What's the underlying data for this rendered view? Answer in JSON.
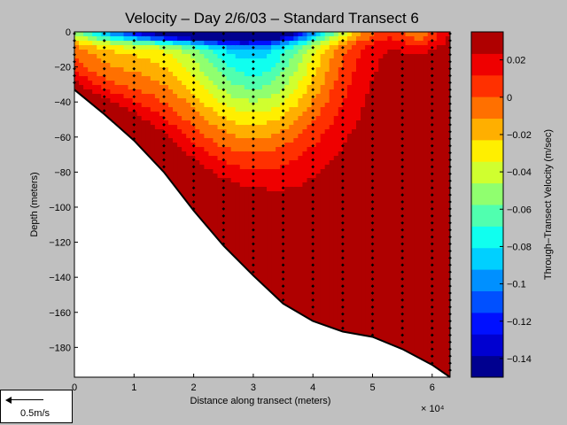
{
  "chart_data": {
    "type": "heatmap",
    "title": "Velocity – Day 2/6/03 – Standard Transect 6",
    "xlabel": "Distance along transect (meters)",
    "x_multiplier": "× 10⁴",
    "ylabel": "Depth (meters)",
    "colorbar_label": "Through–Transect Velocity (m/sec)",
    "xlim": [
      0,
      6.3
    ],
    "ylim": [
      -197,
      0
    ],
    "xticks": [
      0,
      1,
      2,
      3,
      4,
      5,
      6
    ],
    "xtick_labels": [
      "0",
      "1",
      "2",
      "3",
      "4",
      "5",
      "6"
    ],
    "yticks": [
      0,
      -20,
      -40,
      -60,
      -80,
      -100,
      -120,
      -140,
      -160,
      -180
    ],
    "ytick_labels": [
      "0",
      "−20",
      "−40",
      "−60",
      "−80",
      "−100",
      "−120",
      "−140",
      "−160",
      "−180"
    ],
    "colorbar_range": [
      -0.15,
      0.035
    ],
    "colorbar_ticks": [
      0.02,
      0,
      -0.02,
      -0.04,
      -0.06,
      -0.08,
      -0.1,
      -0.12,
      -0.14
    ],
    "colorbar_tick_labels": [
      "0.02",
      "0",
      "−0.02",
      "−0.04",
      "−0.06",
      "−0.08",
      "−0.1",
      "−0.12",
      "−0.14"
    ],
    "colormap": [
      "#00008f",
      "#0000d0",
      "#0010ff",
      "#0050ff",
      "#0090ff",
      "#00d0ff",
      "#10ffef",
      "#50ffaf",
      "#90ff6f",
      "#d0ff2f",
      "#ffef00",
      "#ffaf00",
      "#ff7000",
      "#ff3000",
      "#ef0000",
      "#af0000"
    ],
    "bathymetry": [
      [
        0,
        -33
      ],
      [
        0.5,
        -47
      ],
      [
        1,
        -62
      ],
      [
        1.5,
        -80
      ],
      [
        2,
        -102
      ],
      [
        2.5,
        -122
      ],
      [
        3,
        -139
      ],
      [
        3.5,
        -155
      ],
      [
        4,
        -165
      ],
      [
        4.5,
        -171
      ],
      [
        5,
        -174
      ],
      [
        5.5,
        -181
      ],
      [
        6,
        -190
      ],
      [
        6.3,
        -197
      ]
    ],
    "station_x": [
      0,
      0.5,
      1,
      1.5,
      2,
      2.5,
      3,
      3.5,
      4,
      4.5,
      5,
      5.5,
      6,
      6.3
    ],
    "sample_depth_spacing": 4
  },
  "scale_bar": {
    "label": "0.5m/s"
  }
}
